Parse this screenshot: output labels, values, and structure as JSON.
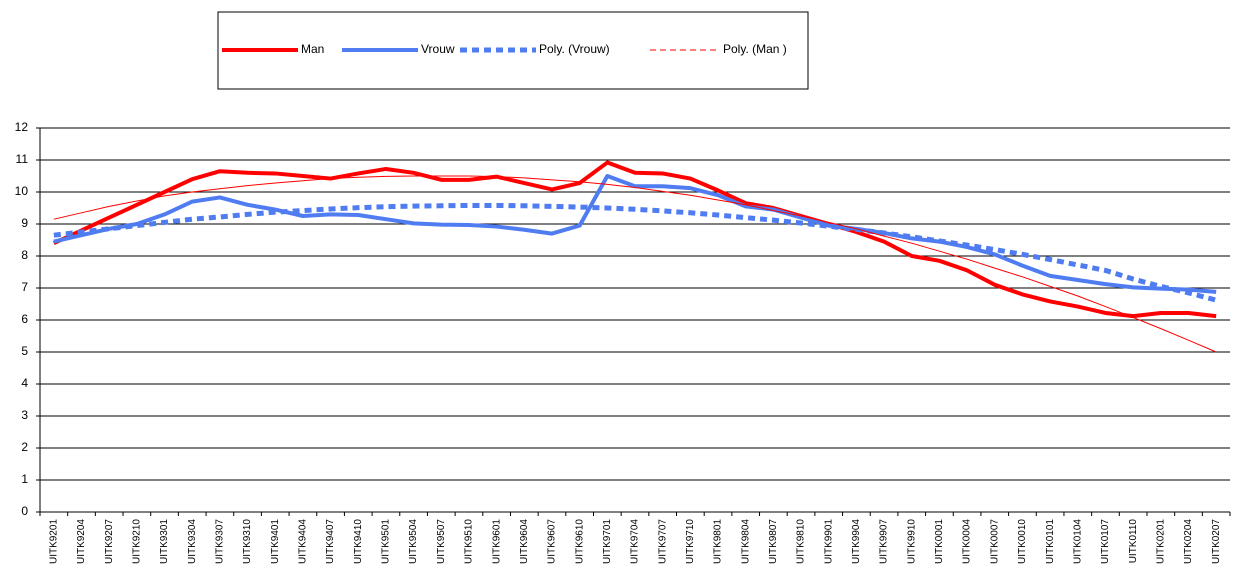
{
  "chart_data": {
    "type": "line",
    "categories": [
      "UITK9201",
      "UITK9204",
      "UITK9207",
      "UITK9210",
      "UITK9301",
      "UITK9304",
      "UITK9307",
      "UITK9310",
      "UITK9401",
      "UITK9404",
      "UITK9407",
      "UITK9410",
      "UITK9501",
      "UITK9504",
      "UITK9507",
      "UITK9510",
      "UITK9601",
      "UITK9604",
      "UITK9607",
      "UITK9610",
      "UITK9701",
      "UITK9704",
      "UITK9707",
      "UITK9710",
      "UITK9801",
      "UITK9804",
      "UITK9807",
      "UITK9810",
      "UITK9901",
      "UITK9904",
      "UITK9907",
      "UITK9910",
      "UITK0001",
      "UITK0004",
      "UITK0007",
      "UITK0010",
      "UITK0101",
      "UITK0104",
      "UITK0107",
      "UITK0110",
      "UITK0201",
      "UITK0204",
      "UITK0207"
    ],
    "series": [
      {
        "name": "Man",
        "color": "#ff0000",
        "style": "thick",
        "values": [
          8.4,
          8.8,
          9.2,
          9.6,
          10.0,
          10.4,
          10.65,
          10.6,
          10.58,
          10.5,
          10.42,
          10.58,
          10.72,
          10.6,
          10.38,
          10.38,
          10.48,
          10.28,
          10.08,
          10.28,
          10.92,
          10.6,
          10.58,
          10.42,
          10.05,
          9.65,
          9.5,
          9.25,
          9.0,
          8.75,
          8.45,
          8.0,
          7.85,
          7.55,
          7.1,
          6.8,
          6.58,
          6.42,
          6.22,
          6.12,
          6.22,
          6.22,
          6.12
        ]
      },
      {
        "name": "Vrouw",
        "color": "#4f7cf0",
        "style": "thick",
        "values": [
          8.45,
          8.65,
          8.85,
          9.0,
          9.3,
          9.7,
          9.83,
          9.6,
          9.45,
          9.25,
          9.3,
          9.28,
          9.15,
          9.02,
          8.98,
          8.97,
          8.92,
          8.82,
          8.7,
          8.95,
          10.5,
          10.18,
          10.18,
          10.12,
          9.9,
          9.55,
          9.45,
          9.2,
          8.95,
          8.85,
          8.72,
          8.55,
          8.45,
          8.28,
          8.05,
          7.7,
          7.38,
          7.25,
          7.12,
          7.02,
          6.98,
          6.95,
          6.88
        ]
      },
      {
        "name": "Poly. (Vrouw)",
        "color": "#4f7cf0",
        "style": "thick-dashed",
        "values": [
          8.65,
          8.75,
          8.85,
          8.95,
          9.05,
          9.15,
          9.22,
          9.3,
          9.37,
          9.42,
          9.47,
          9.51,
          9.54,
          9.56,
          9.57,
          9.58,
          9.58,
          9.57,
          9.55,
          9.53,
          9.5,
          9.46,
          9.41,
          9.35,
          9.28,
          9.2,
          9.12,
          9.03,
          8.93,
          8.83,
          8.72,
          8.6,
          8.47,
          8.34,
          8.2,
          8.05,
          7.89,
          7.72,
          7.55,
          7.28,
          7.05,
          6.85,
          6.62
        ]
      },
      {
        "name": "Poly. (Man )",
        "color": "#ff0000",
        "style": "thin-dashed",
        "values": [
          9.15,
          9.35,
          9.55,
          9.72,
          9.88,
          10.0,
          10.1,
          10.2,
          10.28,
          10.35,
          10.42,
          10.46,
          10.49,
          10.5,
          10.5,
          10.5,
          10.48,
          10.44,
          10.38,
          10.32,
          10.24,
          10.14,
          10.02,
          9.9,
          9.75,
          9.6,
          9.42,
          9.25,
          9.05,
          8.85,
          8.62,
          8.4,
          8.15,
          7.9,
          7.62,
          7.35,
          7.05,
          6.75,
          6.42,
          6.08,
          5.73,
          5.37,
          5.0
        ]
      }
    ],
    "ylim": [
      0,
      12
    ],
    "yticks": [
      0,
      1,
      2,
      3,
      4,
      5,
      6,
      7,
      8,
      9,
      10,
      11,
      12
    ],
    "grid": true,
    "legend": "top"
  }
}
